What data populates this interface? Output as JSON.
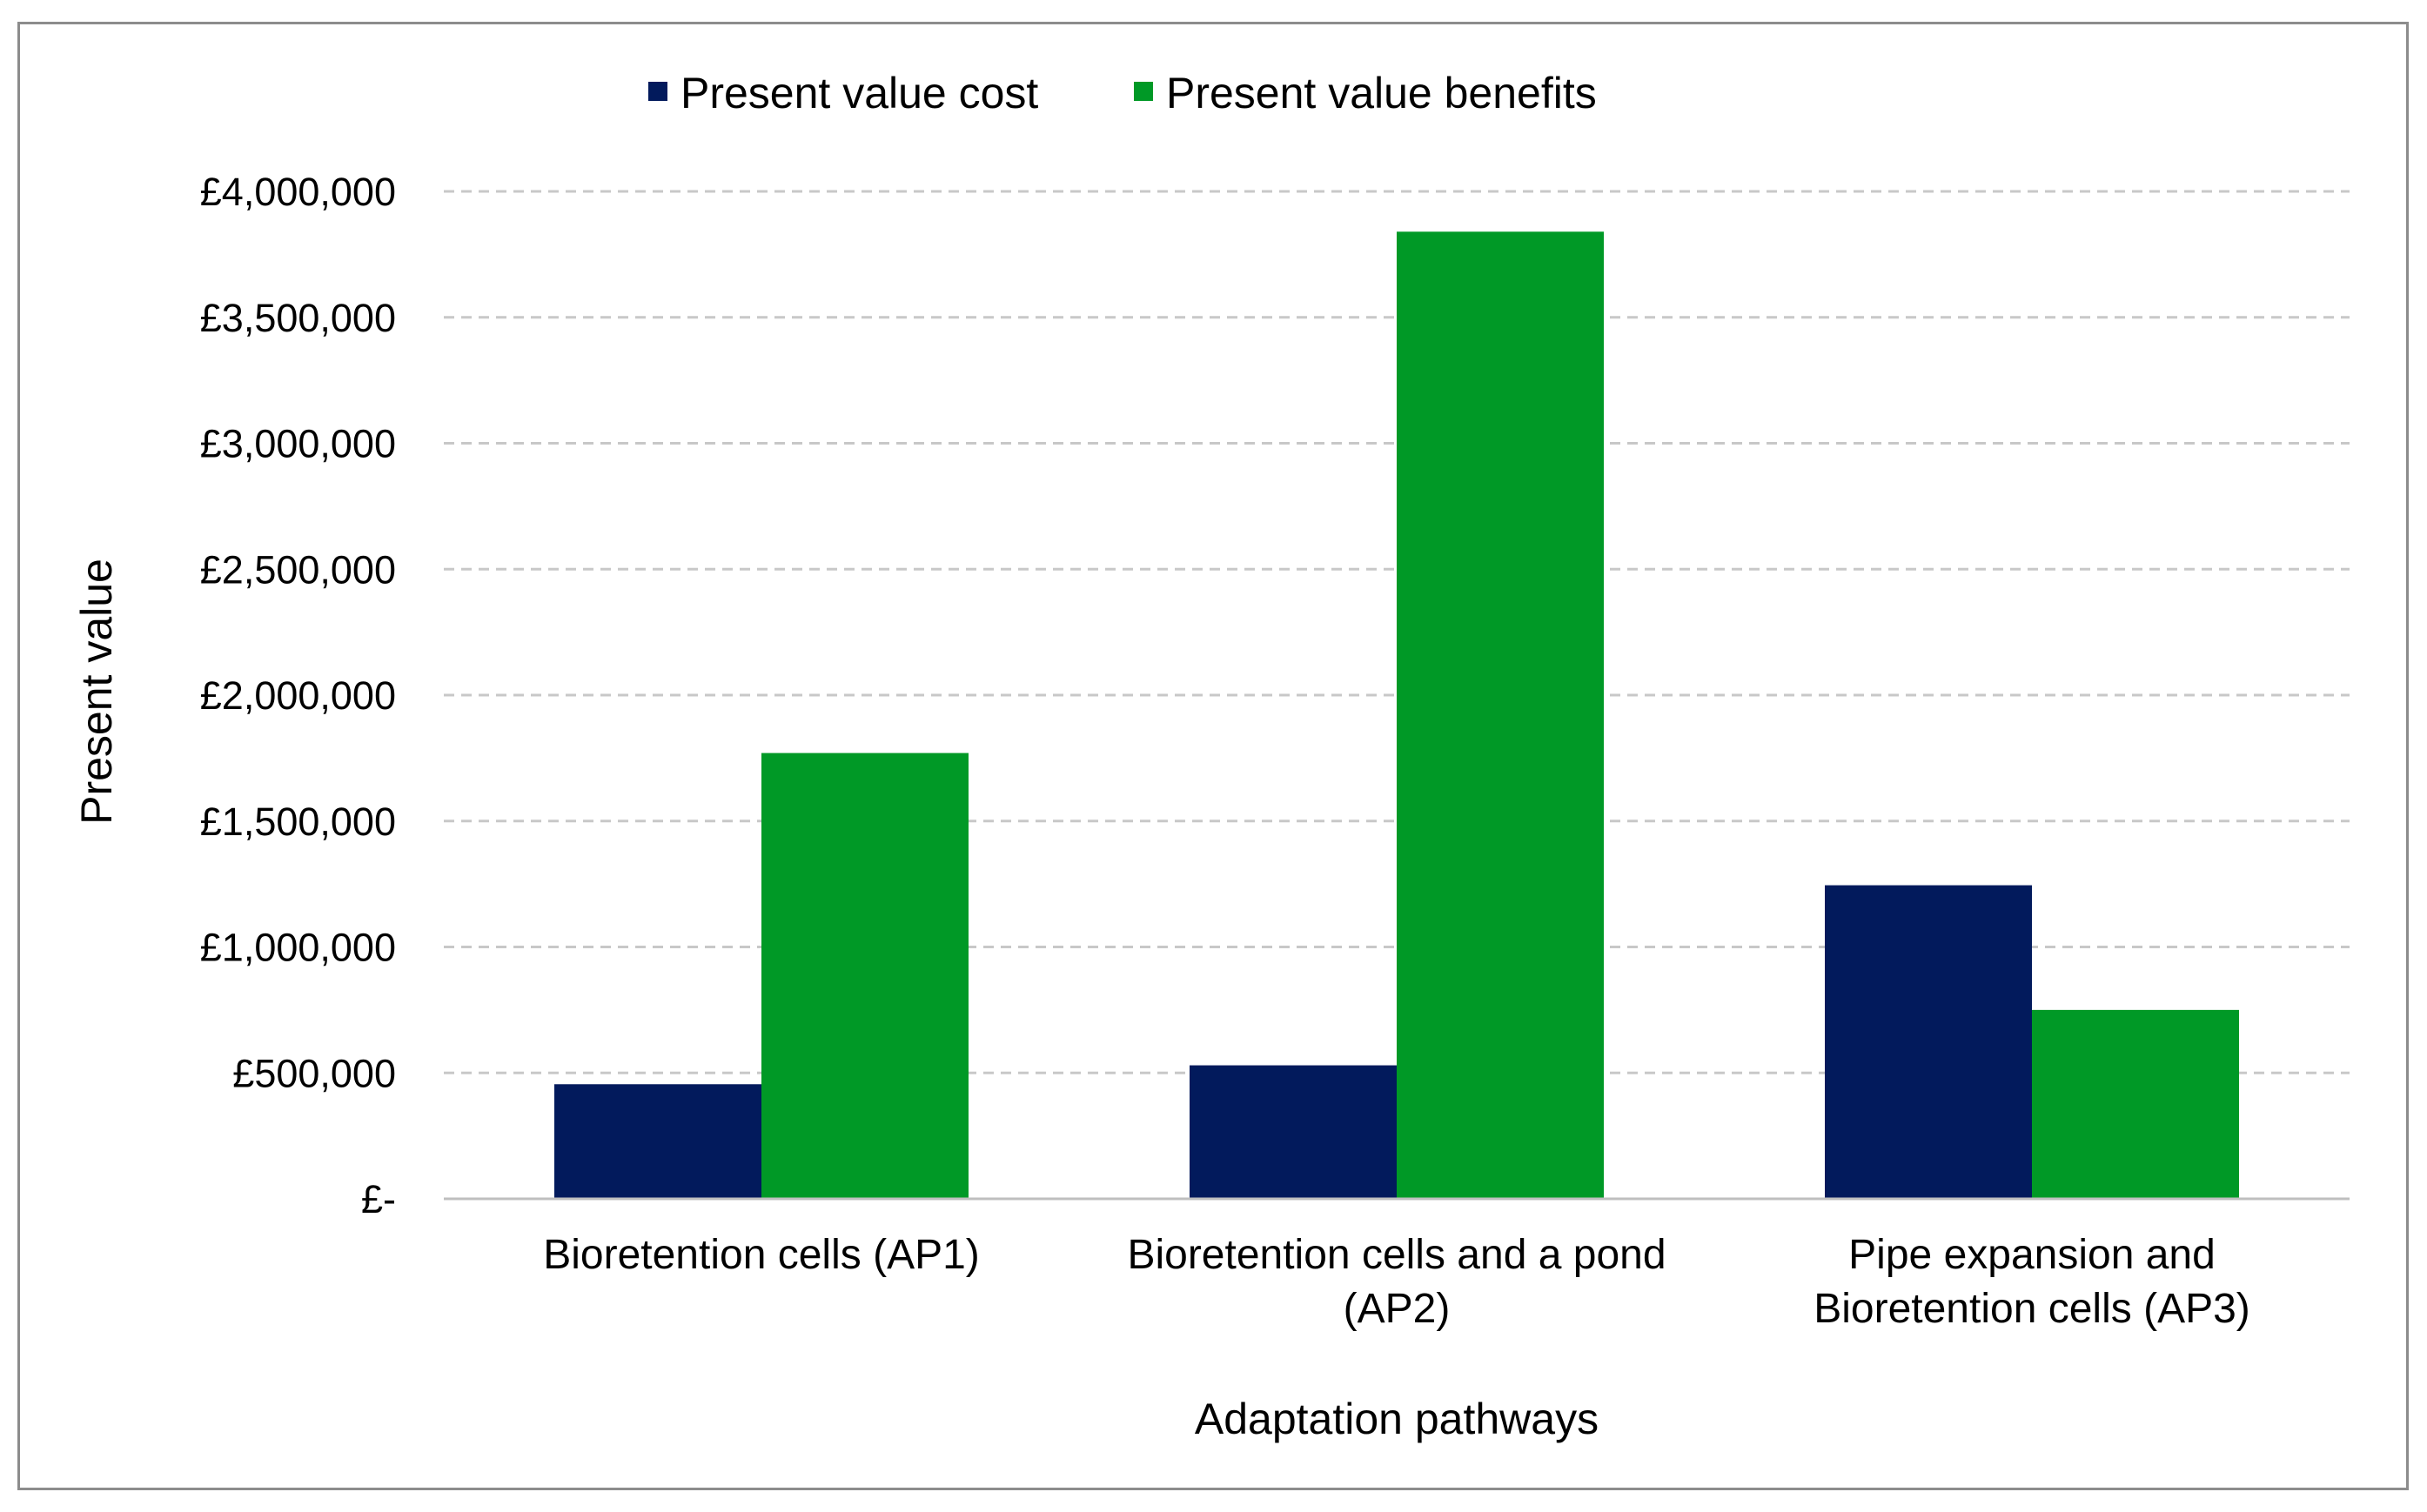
{
  "chart_data": {
    "type": "bar",
    "title": "",
    "xlabel": "Adaptation pathways",
    "ylabel": "Present value",
    "ylim": [
      0,
      4000000
    ],
    "grid": true,
    "legend_position": "top-center",
    "categories": [
      [
        "Bioretention cells (AP1)"
      ],
      [
        "Bioretention cells and a pond",
        "(AP2)"
      ],
      [
        "Pipe expansion and",
        "Bioretention cells (AP3)"
      ]
    ],
    "y_tick_values": [
      0,
      500000,
      1000000,
      1500000,
      2000000,
      2500000,
      3000000,
      3500000,
      4000000
    ],
    "y_tick_labels": [
      "£-",
      "£500,000",
      "£1,000,000",
      "£1,500,000",
      "£2,000,000",
      "£2,500,000",
      "£3,000,000",
      "£3,500,000",
      "£4,000,000"
    ],
    "series": [
      {
        "name": "Present value cost",
        "color": "#021a5c",
        "values": [
          455000,
          530000,
          1245000
        ]
      },
      {
        "name": "Present value benefits",
        "color": "#009926",
        "values": [
          1770000,
          3840000,
          750000
        ]
      }
    ]
  }
}
